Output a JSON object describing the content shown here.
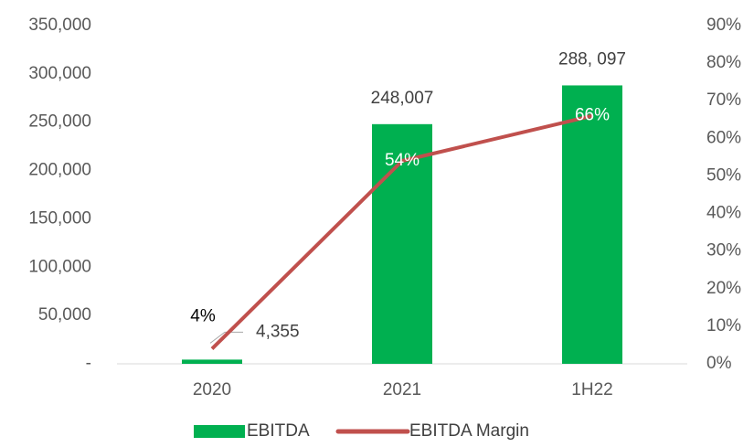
{
  "chart_data": {
    "type": "bar",
    "categories": [
      "2020",
      "2021",
      "1H22"
    ],
    "series": [
      {
        "name": "EBITDA",
        "type": "bar",
        "color": "#00b050",
        "values": [
          4355,
          248007,
          288097
        ],
        "value_labels": [
          "4,355",
          "248,007",
          "288, 097"
        ]
      },
      {
        "name": "EBITDA Margin",
        "type": "line",
        "axis": "y2",
        "color": "#c0504d",
        "values": [
          4,
          54,
          66
        ],
        "value_labels": [
          "4%",
          "54%",
          "66%"
        ]
      }
    ],
    "ylim": [
      0,
      350000
    ],
    "yticks": [
      {
        "value": 0,
        "label": "-"
      },
      {
        "value": 50000,
        "label": "50,000"
      },
      {
        "value": 100000,
        "label": "100,000"
      },
      {
        "value": 150000,
        "label": "150,000"
      },
      {
        "value": 200000,
        "label": "200,000"
      },
      {
        "value": 250000,
        "label": "250,000"
      },
      {
        "value": 300000,
        "label": "300,000"
      },
      {
        "value": 350000,
        "label": "350,000"
      }
    ],
    "y2lim": [
      0,
      90
    ],
    "y2ticks": [
      {
        "value": 0,
        "label": "0%"
      },
      {
        "value": 10,
        "label": "10%"
      },
      {
        "value": 20,
        "label": "20%"
      },
      {
        "value": 30,
        "label": "30%"
      },
      {
        "value": 40,
        "label": "40%"
      },
      {
        "value": 50,
        "label": "50%"
      },
      {
        "value": 60,
        "label": "60%"
      },
      {
        "value": 70,
        "label": "70%"
      },
      {
        "value": 80,
        "label": "80%"
      },
      {
        "value": 90,
        "label": "90%"
      }
    ],
    "grid": false,
    "legend": "bottom"
  }
}
